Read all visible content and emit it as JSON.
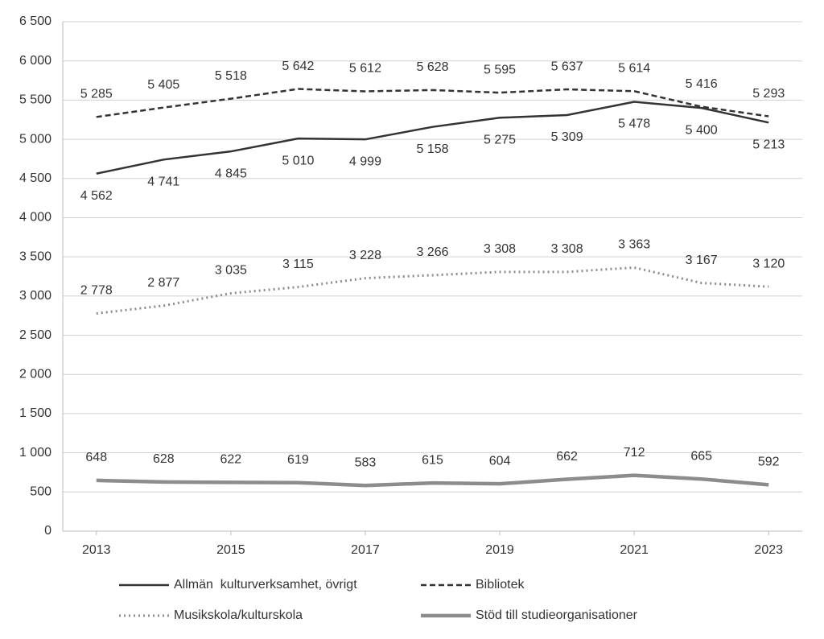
{
  "chart_data": {
    "type": "line",
    "x": [
      2013,
      2014,
      2015,
      2016,
      2017,
      2018,
      2019,
      2020,
      2021,
      2022,
      2023
    ],
    "xlim": [
      2012.5,
      2023.5
    ],
    "xticks": [
      2013,
      2015,
      2017,
      2019,
      2021,
      2023
    ],
    "ylim": [
      0,
      6500
    ],
    "yticks": [
      0,
      500,
      {
        "value": 1000,
        "label": "1 000"
      },
      {
        "value": 1500,
        "label": "1 500"
      },
      {
        "value": 2000,
        "label": "2 000"
      },
      {
        "value": 2500,
        "label": "2 500"
      },
      {
        "value": 3000,
        "label": "3 000"
      },
      {
        "value": 3500,
        "label": "3 500"
      },
      {
        "value": 4000,
        "label": "4 000"
      },
      {
        "value": 4500,
        "label": "4 500"
      },
      {
        "value": 5000,
        "label": "5 000"
      },
      {
        "value": 5500,
        "label": "5 500"
      },
      {
        "value": 6000,
        "label": "6 000"
      },
      {
        "value": 6500,
        "label": "6 500"
      }
    ],
    "grid": true,
    "series": [
      {
        "name": "Allmän  kulturverksamhet, övrigt",
        "color": "#333333",
        "style": "solid",
        "values": [
          4562,
          4741,
          4845,
          5010,
          4999,
          5158,
          5275,
          5309,
          5478,
          5400,
          5213
        ],
        "value_labels": [
          "4 562",
          "4 741",
          "4 845",
          "5 010",
          "4 999",
          "5 158",
          "5 275",
          "5 309",
          "5 478",
          "5 400",
          "5 213"
        ]
      },
      {
        "name": "Bibliotek",
        "color": "#333333",
        "style": "dashed",
        "values": [
          5285,
          5405,
          5518,
          5642,
          5612,
          5628,
          5595,
          5637,
          5614,
          5416,
          5293
        ],
        "value_labels": [
          "5 285",
          "5 405",
          "5 518",
          "5 642",
          "5 612",
          "5 628",
          "5 595",
          "5 637",
          "5 614",
          "5 416",
          "5 293"
        ]
      },
      {
        "name": "Musikskola/kulturskola",
        "color": "#8c8c8c",
        "style": "dotted",
        "values": [
          2778,
          2877,
          3035,
          3115,
          3228,
          3266,
          3308,
          3308,
          3363,
          3167,
          3120
        ],
        "value_labels": [
          "2 778",
          "2 877",
          "3 035",
          "3 115",
          "3 228",
          "3 266",
          "3 308",
          "3 308",
          "3 363",
          "3 167",
          "3 120"
        ]
      },
      {
        "name": "Stöd till studieorganisationer",
        "color": "#8c8c8c",
        "style": "thick",
        "values": [
          648,
          628,
          622,
          619,
          583,
          615,
          604,
          662,
          712,
          665,
          592
        ]
      }
    ]
  }
}
